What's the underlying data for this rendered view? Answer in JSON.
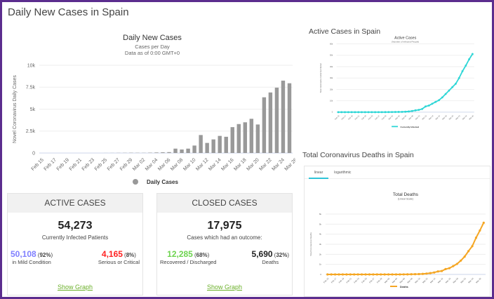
{
  "page_title": "Daily New Cases in Spain",
  "active_section_title": "Active Cases in Spain",
  "deaths_section_title": "Total Coronavirus Deaths in Spain",
  "active_panel": {
    "header": "ACTIVE CASES",
    "total": "54,273",
    "total_label": "Currently Infected Patients",
    "mild": {
      "value": "50,108",
      "pct": "92%",
      "label": "in Mild Condition",
      "color": "#8080ff"
    },
    "serious": {
      "value": "4,165",
      "pct": "8%",
      "label": "Serious or Critical",
      "color": "#ff2222"
    },
    "link": "Show Graph"
  },
  "closed_panel": {
    "header": "CLOSED CASES",
    "total": "17,975",
    "total_label": "Cases which had an outcome:",
    "recovered": {
      "value": "12,285",
      "pct": "68%",
      "label": "Recovered / Discharged",
      "color": "#6dd34f"
    },
    "deaths": {
      "value": "5,690",
      "pct": "32%",
      "label": "Deaths",
      "color": "#222222"
    },
    "link": "Show Graph"
  },
  "deaths_tabs": [
    "linear",
    "logarithmic"
  ],
  "chart_data": [
    {
      "type": "bar",
      "title": "Daily New Cases",
      "subtitle": [
        "Cases per Day",
        "Data as of 0:00 GMT+0"
      ],
      "ylabel": "Novel Coronavirus Daily Cases",
      "ylim": [
        0,
        10000
      ],
      "yticks": [
        "0",
        "2.5k",
        "5k",
        "7.5k",
        "10k"
      ],
      "legend": "Daily Cases",
      "legend_position": "bottom",
      "color": "#999999",
      "xtick_labels": [
        "Feb 15",
        "Feb 17",
        "Feb 19",
        "Feb 21",
        "Feb 23",
        "Feb 25",
        "Feb 27",
        "Feb 29",
        "Mar 02",
        "Mar 04",
        "Mar 06",
        "Mar 08",
        "Mar 10",
        "Mar 12",
        "Mar 14",
        "Mar 16",
        "Mar 18",
        "Mar 20",
        "Mar 22",
        "Mar 24",
        "Mar 26"
      ],
      "values": [
        0,
        0,
        0,
        0,
        0,
        0,
        0,
        0,
        0,
        0,
        5,
        10,
        15,
        20,
        30,
        25,
        20,
        40,
        60,
        80,
        100,
        500,
        400,
        500,
        850,
        2050,
        1150,
        1550,
        1950,
        1850,
        2950,
        3300,
        3500,
        3900,
        3250,
        6350,
        6900,
        7450,
        8250,
        7950
      ]
    },
    {
      "type": "line",
      "title": "Active Cases",
      "subtitle": "(Number of Infected People)",
      "ylabel": "Total Coronavirus Currently Infected",
      "ylim": [
        0,
        60000
      ],
      "yticks": [
        "0",
        "10k",
        "20k",
        "30k",
        "40k",
        "50k",
        "60k"
      ],
      "legend": "Currently Infected",
      "color": "#2ed6d6",
      "xtick_labels": [
        "Feb 15",
        "Feb 17",
        "Feb 19",
        "Feb 21",
        "Feb 23",
        "Feb 25",
        "Feb 27",
        "Feb 29",
        "Mar 02",
        "Mar 04",
        "Mar 06",
        "Mar 08",
        "Mar 10",
        "Mar 12",
        "Mar 14",
        "Mar 16",
        "Mar 18",
        "Mar 20",
        "Mar 22",
        "Mar 24",
        "Mar 26"
      ],
      "values": [
        2,
        2,
        2,
        2,
        2,
        2,
        2,
        2,
        2,
        2,
        10,
        15,
        25,
        30,
        45,
        70,
        100,
        150,
        200,
        250,
        370,
        600,
        1000,
        1600,
        2000,
        2800,
        5000,
        5800,
        7400,
        9000,
        10500,
        13000,
        16000,
        19000,
        22000,
        25000,
        30000,
        36000,
        41000,
        46500,
        51200
      ]
    },
    {
      "type": "line",
      "title": "Total Deaths",
      "subtitle": "(Linear Scale)",
      "ylabel": "Total Coronavirus Deaths",
      "ylim": [
        0,
        6000
      ],
      "yticks": [
        "0",
        "1k",
        "2k",
        "3k",
        "4k",
        "5k",
        "6k"
      ],
      "legend": "Deaths",
      "color": "#f5a623",
      "xtick_labels": [
        "Feb 15",
        "Feb 17",
        "Feb 19",
        "Feb 21",
        "Feb 23",
        "Feb 25",
        "Feb 27",
        "Feb 29",
        "Mar 02",
        "Mar 04",
        "Mar 06",
        "Mar 08",
        "Mar 10",
        "Mar 12",
        "Mar 14",
        "Mar 16",
        "Mar 18",
        "Mar 20",
        "Mar 22",
        "Mar 24",
        "Mar 26"
      ],
      "values": [
        0,
        0,
        0,
        0,
        0,
        0,
        0,
        0,
        0,
        0,
        0,
        0,
        0,
        0,
        0,
        0,
        0,
        1,
        2,
        3,
        5,
        10,
        17,
        28,
        35,
        54,
        84,
        133,
        196,
        294,
        342,
        533,
        623,
        830,
        1043,
        1375,
        1772,
        2311,
        2808,
        3647,
        4365,
        5138
      ]
    }
  ]
}
